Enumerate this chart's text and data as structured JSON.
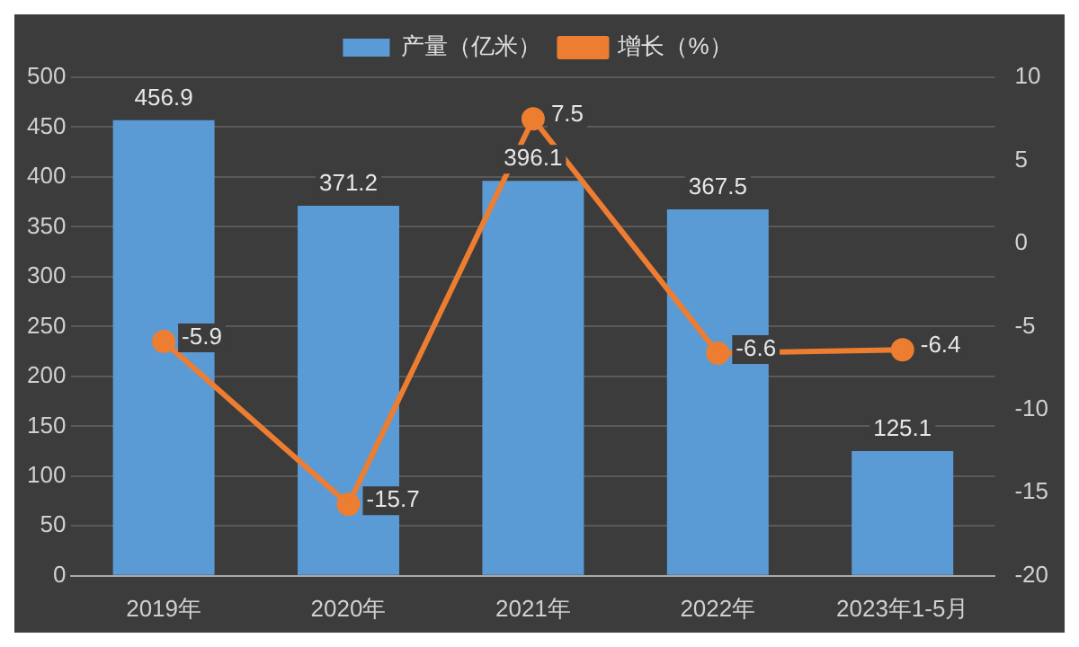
{
  "chart_data": {
    "type": "bar",
    "categories": [
      "2019年",
      "2020年",
      "2021年",
      "2022年",
      "2023年1-5月"
    ],
    "series": [
      {
        "name": "产量（亿米）",
        "color": "#5b9bd5",
        "values": [
          456.9,
          371.2,
          396.1,
          367.5,
          125.1
        ]
      },
      {
        "name": "增长（%）",
        "type": "line",
        "axis": "y2",
        "color": "#ed7d31",
        "values": [
          -5.9,
          -15.7,
          7.5,
          -6.6,
          -6.4
        ]
      }
    ],
    "ylim": [
      0,
      500
    ],
    "yticks": [
      0,
      50,
      100,
      150,
      200,
      250,
      300,
      350,
      400,
      450,
      500
    ],
    "y2lim": [
      -20,
      10
    ],
    "y2ticks": [
      -20,
      -15,
      -10,
      -5,
      0,
      5,
      10
    ],
    "grid": "y",
    "legend": "top",
    "marker": "circle",
    "line_style": "solid",
    "data_labels": true
  }
}
